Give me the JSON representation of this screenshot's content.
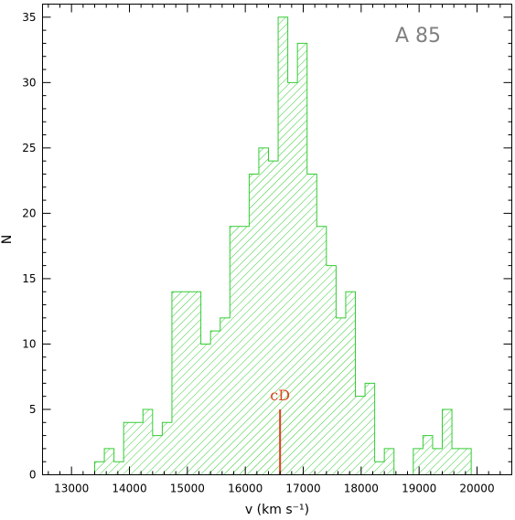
{
  "chart_data": {
    "type": "bar",
    "label": "A 85",
    "xlabel": "v (km s⁻¹)",
    "ylabel": "N",
    "xlim": [
      12500,
      20600
    ],
    "ylim": [
      0,
      36
    ],
    "x_ticks": [
      "13000",
      "14000",
      "15000",
      "16000",
      "17000",
      "18000",
      "19000",
      "20000"
    ],
    "y_ticks": [
      "0",
      "5",
      "10",
      "15",
      "20",
      "25",
      "30",
      "35"
    ],
    "bin_width": 166.67,
    "bins": [
      {
        "start": 13400,
        "value": 1
      },
      {
        "start": 13567,
        "value": 2
      },
      {
        "start": 13733,
        "value": 1
      },
      {
        "start": 13900,
        "value": 4
      },
      {
        "start": 14067,
        "value": 4
      },
      {
        "start": 14233,
        "value": 5
      },
      {
        "start": 14400,
        "value": 3
      },
      {
        "start": 14567,
        "value": 4
      },
      {
        "start": 14733,
        "value": 14
      },
      {
        "start": 14900,
        "value": 14
      },
      {
        "start": 15067,
        "value": 14
      },
      {
        "start": 15233,
        "value": 10
      },
      {
        "start": 15400,
        "value": 11
      },
      {
        "start": 15567,
        "value": 12
      },
      {
        "start": 15733,
        "value": 19
      },
      {
        "start": 15900,
        "value": 19
      },
      {
        "start": 16067,
        "value": 23
      },
      {
        "start": 16233,
        "value": 25
      },
      {
        "start": 16400,
        "value": 24
      },
      {
        "start": 16567,
        "value": 35
      },
      {
        "start": 16733,
        "value": 30
      },
      {
        "start": 16900,
        "value": 33
      },
      {
        "start": 17067,
        "value": 23
      },
      {
        "start": 17233,
        "value": 19
      },
      {
        "start": 17400,
        "value": 16
      },
      {
        "start": 17567,
        "value": 12
      },
      {
        "start": 17733,
        "value": 14
      },
      {
        "start": 17900,
        "value": 6
      },
      {
        "start": 18067,
        "value": 7
      },
      {
        "start": 18233,
        "value": 1
      },
      {
        "start": 18400,
        "value": 2
      },
      {
        "start": 18567,
        "value": 0
      },
      {
        "start": 18733,
        "value": 0
      },
      {
        "start": 18900,
        "value": 2
      },
      {
        "start": 19067,
        "value": 3
      },
      {
        "start": 19233,
        "value": 2
      },
      {
        "start": 19400,
        "value": 5
      },
      {
        "start": 19567,
        "value": 2
      },
      {
        "start": 19733,
        "value": 2
      }
    ],
    "annotation": {
      "text": "cD",
      "x": 16600,
      "y_top": 5,
      "color": "#e0401a"
    },
    "colors": {
      "hatch": "#33cc33",
      "axis": "#000000",
      "label": "#808080"
    },
    "grid": false
  }
}
